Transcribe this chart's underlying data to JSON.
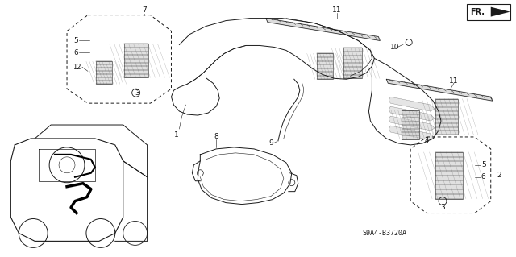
{
  "bg_color": "#ffffff",
  "fig_width": 6.4,
  "fig_height": 3.19,
  "diagram_code": "S9A4-B3720A",
  "fr_label": "FR.",
  "label_fs": 6.5,
  "dark": "#1a1a1a",
  "gray": "#888888"
}
